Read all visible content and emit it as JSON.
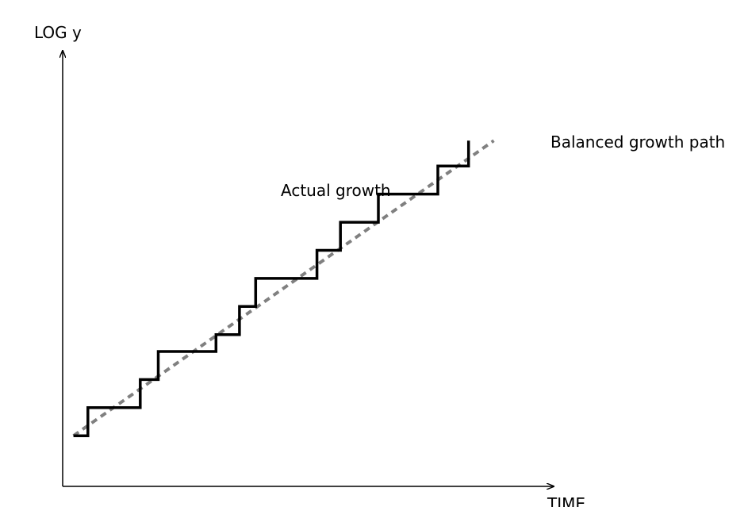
{
  "chart_data": {
    "type": "line",
    "title": "",
    "xlabel": "TIME",
    "ylabel": "LOG y",
    "xlim": [
      0,
      27
    ],
    "ylim": [
      0,
      15.5
    ],
    "grid": false,
    "series": [
      {
        "name": "Actual growth",
        "style": "step",
        "color": "#000000",
        "x": [
          0.6,
          1.4,
          1.4,
          4.3,
          4.3,
          5.3,
          5.3,
          8.5,
          8.5,
          9.8,
          9.8,
          10.7,
          10.7,
          14.1,
          14.1,
          15.4,
          15.4,
          17.5,
          17.5,
          20.8,
          20.8,
          22.5,
          22.5
        ],
        "y": [
          1.8,
          1.8,
          2.8,
          2.8,
          3.8,
          3.8,
          4.8,
          4.8,
          5.4,
          5.4,
          6.4,
          6.4,
          7.4,
          7.4,
          8.4,
          8.4,
          9.4,
          9.4,
          10.4,
          10.4,
          11.4,
          11.4,
          12.3
        ]
      },
      {
        "name": "Balanced growth path",
        "style": "dashed",
        "color": "#808080",
        "x": [
          0.6,
          23.9
        ],
        "y": [
          1.8,
          12.3
        ]
      }
    ]
  }
}
